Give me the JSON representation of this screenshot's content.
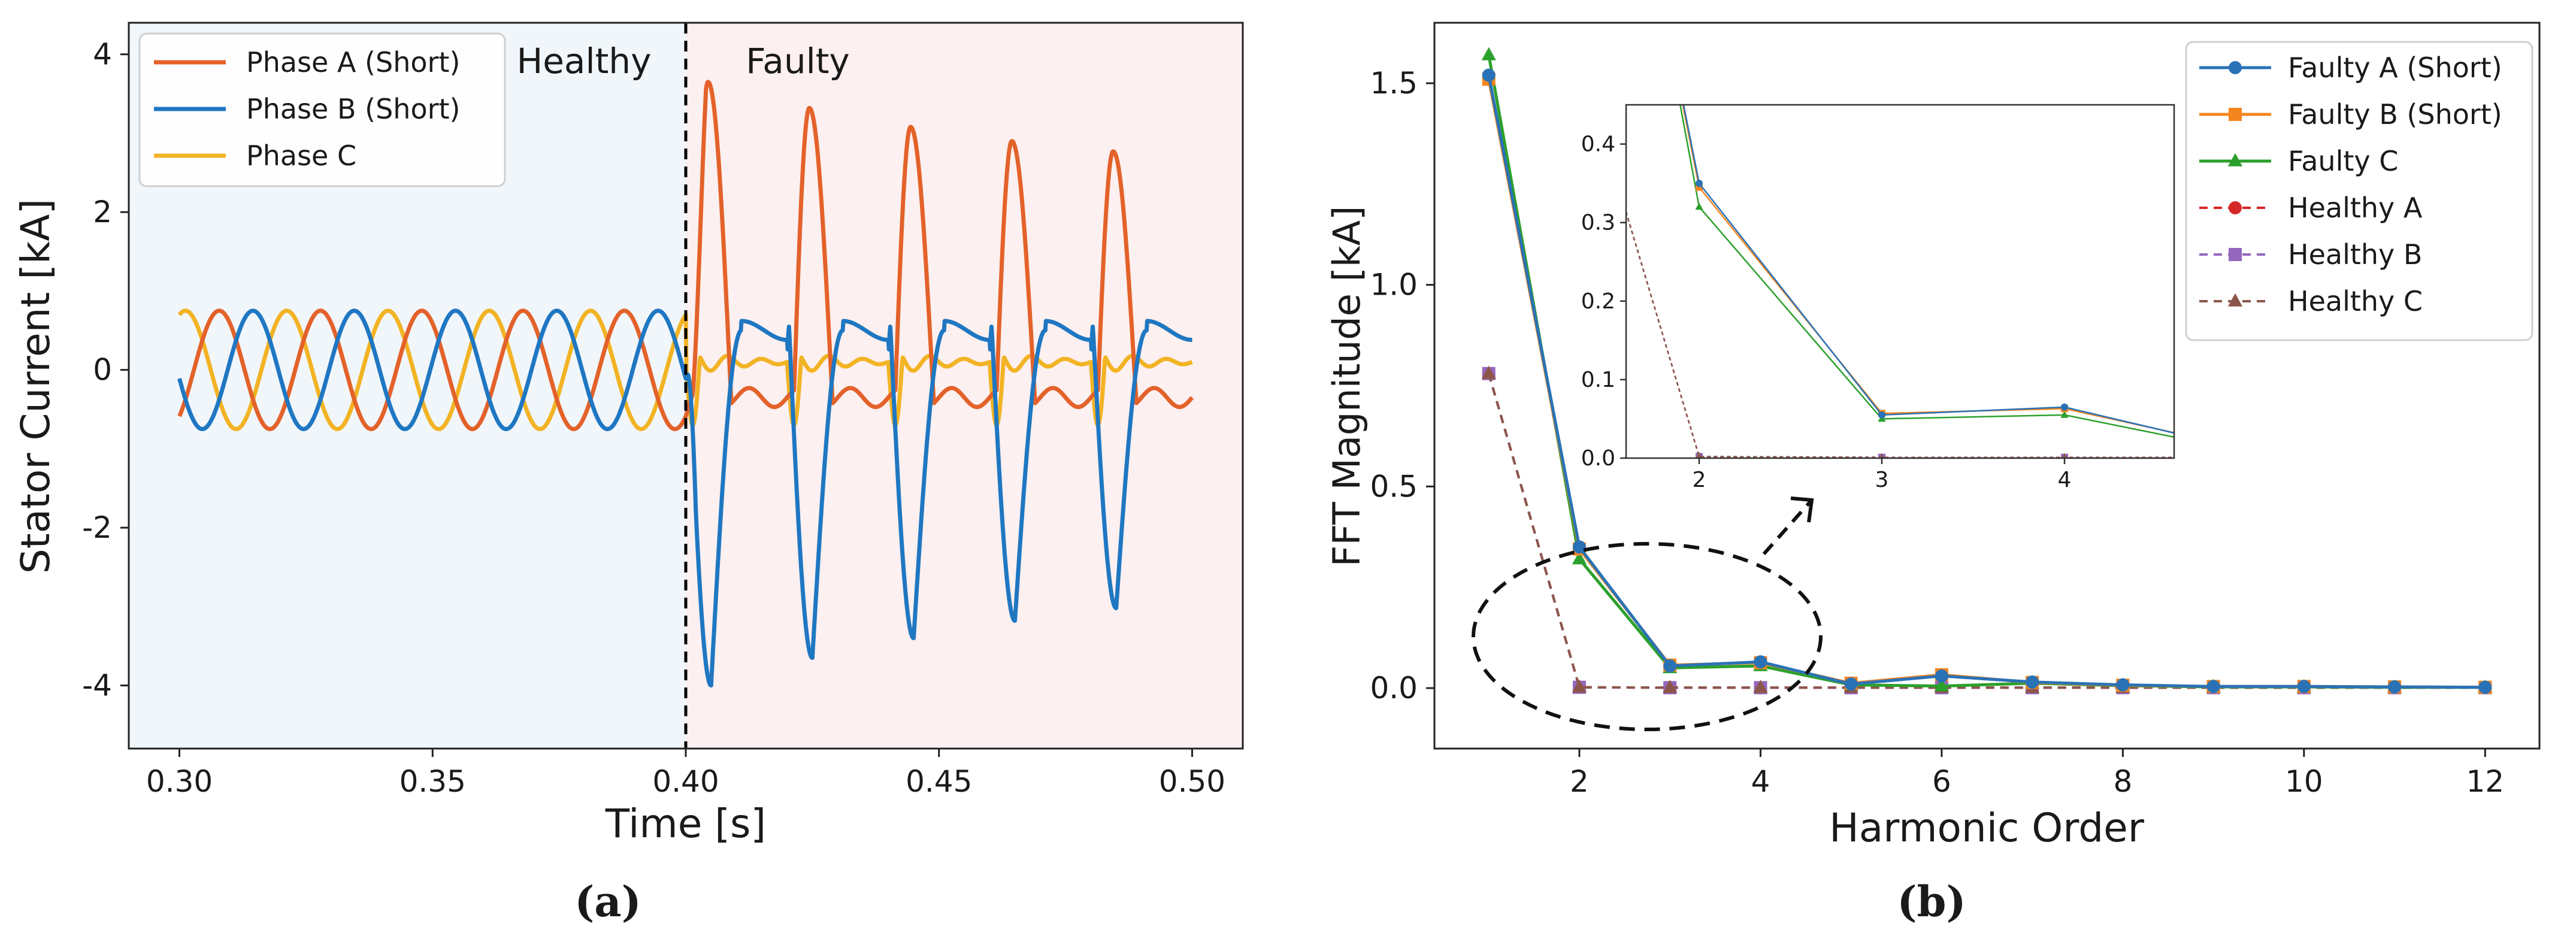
{
  "chart_data": [
    {
      "panel_label": "(a)",
      "type": "line",
      "xlabel": "Time [s]",
      "ylabel": "Stator  Current  [kA]",
      "xlim": [
        0.29,
        0.51
      ],
      "ylim": [
        -4.8,
        4.4
      ],
      "xticks": [
        "0.30",
        "0.35",
        "0.40",
        "0.45",
        "0.50"
      ],
      "yticks": [
        "4",
        "2",
        "0",
        "-2",
        "-4"
      ],
      "region_labels": [
        "Healthy",
        "Faulty"
      ],
      "fault_time": 0.4,
      "legend_position": "upper-left",
      "grid": false,
      "signal_model": {
        "frequency_hz": 50,
        "healthy_amplitude": 0.75,
        "fault_period_s": 0.02,
        "fault_peaks": {
          "phase_a": [
            3.65,
            3.32,
            3.08,
            2.9,
            2.77
          ],
          "phase_b": [
            -4.0,
            -3.65,
            -3.4,
            -3.18,
            -3.02
          ]
        },
        "phase_c_dip": -0.95
      },
      "series": [
        {
          "name": "Phase A (Short)",
          "color": "#e3622a"
        },
        {
          "name": "Phase B (Short)",
          "color": "#1f77c2"
        },
        {
          "name": "Phase C",
          "color": "#f2b324"
        }
      ]
    },
    {
      "panel_label": "(b)",
      "type": "line",
      "xlabel": "Harmonic Order",
      "ylabel": "FFT Magnitude [kA]",
      "xlim": [
        0.4,
        12.6
      ],
      "ylim": [
        -0.15,
        1.65
      ],
      "xticks": [
        "2",
        "4",
        "6",
        "8",
        "10",
        "12"
      ],
      "yticks": [
        "1.5",
        "1.0",
        "0.5",
        "0.0"
      ],
      "x": [
        1,
        2,
        3,
        4,
        5,
        6,
        7,
        8,
        9,
        10,
        11,
        12
      ],
      "legend_position": "upper-right",
      "grid": false,
      "series": [
        {
          "name": "Faulty A (Short)",
          "color": "#2a72b6",
          "marker": "circle",
          "dash": "solid",
          "values": [
            1.52,
            0.35,
            0.055,
            0.065,
            0.01,
            0.03,
            0.015,
            0.008,
            0.004,
            0.004,
            0.003,
            0.002
          ]
        },
        {
          "name": "Faulty B (Short)",
          "color": "#f5861f",
          "marker": "square",
          "dash": "solid",
          "values": [
            1.51,
            0.345,
            0.057,
            0.063,
            0.012,
            0.033,
            0.014,
            0.007,
            0.004,
            0.004,
            0.003,
            0.002
          ]
        },
        {
          "name": "Faulty C",
          "color": "#2ca02c",
          "marker": "triangle",
          "dash": "solid",
          "values": [
            1.57,
            0.32,
            0.05,
            0.055,
            0.008,
            0.005,
            0.012,
            0.006,
            0.003,
            0.003,
            0.002,
            0.002
          ]
        },
        {
          "name": "Healthy A",
          "color": "#d62728",
          "marker": "circle",
          "dash": "dashed",
          "values": [
            0.78,
            0.002,
            0.001,
            0.001,
            0.001,
            0.001,
            0.001,
            0.001,
            0.001,
            0.001,
            0.001,
            0.001
          ]
        },
        {
          "name": "Healthy B",
          "color": "#9467bd",
          "marker": "square",
          "dash": "dashed",
          "values": [
            0.78,
            0.002,
            0.001,
            0.001,
            0.001,
            0.001,
            0.001,
            0.001,
            0.001,
            0.001,
            0.001,
            0.001
          ]
        },
        {
          "name": "Healthy C",
          "color": "#8c564b",
          "marker": "triangle",
          "dash": "dashed",
          "values": [
            0.78,
            0.002,
            0.001,
            0.001,
            0.001,
            0.001,
            0.001,
            0.001,
            0.001,
            0.001,
            0.001,
            0.001
          ]
        }
      ],
      "inset": {
        "xlim": [
          1.6,
          4.6
        ],
        "ylim": [
          0,
          0.45
        ],
        "xticks": [
          "2",
          "3",
          "4"
        ],
        "yticks": [
          "0.4",
          "0.3",
          "0.2",
          "0.1",
          "0.0"
        ]
      }
    }
  ]
}
